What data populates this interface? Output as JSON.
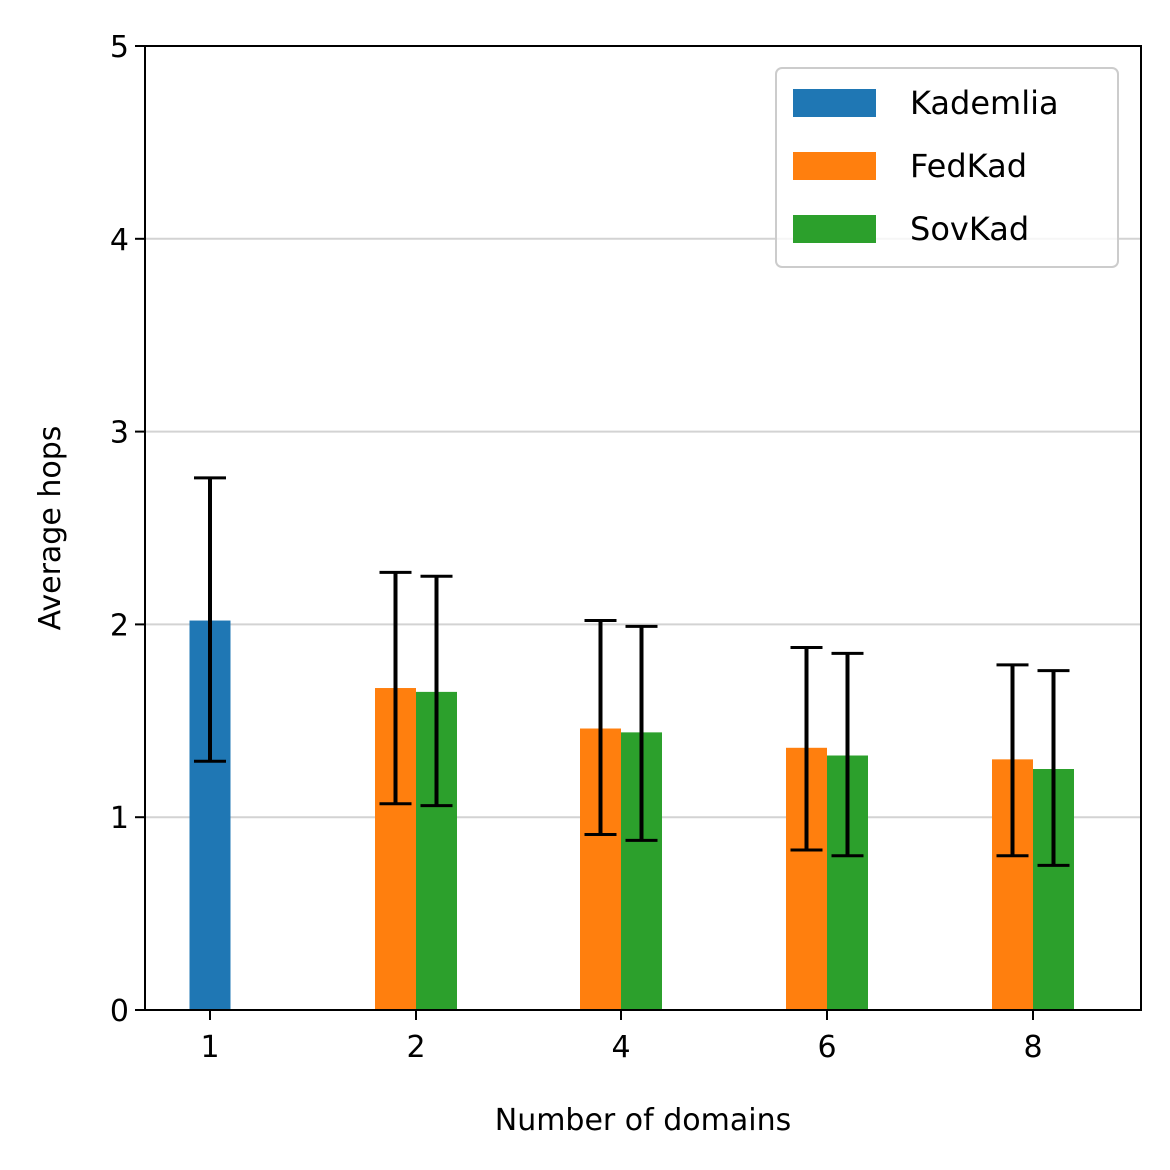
{
  "chart_data": {
    "type": "bar",
    "categories": [
      "1",
      "2",
      "4",
      "6",
      "8"
    ],
    "xlabel": "Number of domains",
    "ylabel": "Average hops",
    "ylim": [
      0,
      5
    ],
    "yticks": [
      "0",
      "1",
      "2",
      "3",
      "4",
      "5"
    ],
    "grid": "horizontal",
    "legend_position": "top-right",
    "series": [
      {
        "name": "Kademlia",
        "color": "#1f77b4",
        "values": [
          2.02,
          null,
          null,
          null,
          null
        ],
        "err_low": [
          1.29,
          null,
          null,
          null,
          null
        ],
        "err_high": [
          2.76,
          null,
          null,
          null,
          null
        ]
      },
      {
        "name": "FedKad",
        "color": "#ff7f0e",
        "values": [
          null,
          1.67,
          1.46,
          1.36,
          1.3
        ],
        "err_low": [
          null,
          1.07,
          0.91,
          0.83,
          0.8
        ],
        "err_high": [
          null,
          2.27,
          2.02,
          1.88,
          1.79
        ]
      },
      {
        "name": "SovKad",
        "color": "#2ca02c",
        "values": [
          null,
          1.65,
          1.44,
          1.32,
          1.25
        ],
        "err_low": [
          null,
          1.06,
          0.88,
          0.8,
          0.75
        ],
        "err_high": [
          null,
          2.25,
          1.99,
          1.85,
          1.76
        ]
      }
    ]
  }
}
